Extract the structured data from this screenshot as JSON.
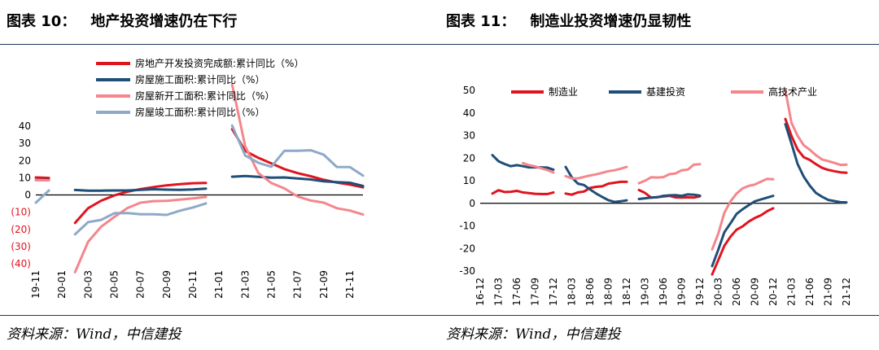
{
  "charts": [
    {
      "title_prefix": "图表 10：",
      "title_text": "地产投资增速仍在下行",
      "source": "资料来源：Wind，中信建投"
    },
    {
      "title_prefix": "图表 11：",
      "title_text": "制造业投资增速仍显韧性",
      "source": "资料来源：Wind，中信建投"
    }
  ],
  "chart_data": [
    {
      "type": "line",
      "ylim": [
        -40,
        40
      ],
      "yticks": [
        40,
        30,
        20,
        10,
        0,
        -10,
        -20,
        -30,
        -40
      ],
      "ytick_labels": [
        "40",
        "30",
        "20",
        "10",
        "0",
        "(10)",
        "(20)",
        "(30)",
        "(40)"
      ],
      "x": [
        "19-11",
        "19-12",
        "20-01",
        "20-02",
        "20-03",
        "20-04",
        "20-05",
        "20-06",
        "20-07",
        "20-08",
        "20-09",
        "20-10",
        "20-11",
        "20-12",
        "21-01",
        "21-02",
        "21-03",
        "21-04",
        "21-05",
        "21-06",
        "21-07",
        "21-08",
        "21-09",
        "21-10",
        "21-11",
        "21-12"
      ],
      "xtick_labels": [
        "19-11",
        "20-01",
        "20-03",
        "20-05",
        "20-07",
        "20-09",
        "20-11",
        "21-01",
        "21-03",
        "21-05",
        "21-07",
        "21-09",
        "21-11"
      ],
      "legend_position": "top",
      "series": [
        {
          "name": "房地产开发投资完成额:累计同比（%）",
          "color": "#e0141e",
          "values": [
            10.2,
            9.9,
            null,
            -16.3,
            -7.7,
            -3.3,
            -0.3,
            1.9,
            3.4,
            4.6,
            5.6,
            6.3,
            6.8,
            7.0,
            null,
            38.3,
            25.6,
            21.6,
            18.3,
            15.0,
            12.7,
            10.9,
            8.8,
            7.2,
            6.0,
            4.4
          ]
        },
        {
          "name": "房屋施工面积:累计同比（%）",
          "color": "#1f4e79",
          "values": [
            8.7,
            8.7,
            null,
            2.9,
            2.5,
            2.5,
            2.6,
            2.6,
            3.0,
            3.3,
            3.1,
            3.0,
            3.2,
            3.7,
            null,
            10.6,
            11.0,
            10.5,
            10.1,
            10.2,
            9.6,
            9.0,
            7.9,
            7.5,
            7.1,
            5.2
          ]
        },
        {
          "name": "房屋新开工面积:累计同比（%）",
          "color": "#f4868c",
          "values": [
            8.6,
            8.5,
            null,
            -44.9,
            -27.2,
            -18.4,
            -12.8,
            -7.6,
            -4.5,
            -3.6,
            -3.4,
            -2.7,
            -2.0,
            -1.2,
            null,
            64.3,
            28.2,
            12.8,
            6.9,
            3.8,
            -0.9,
            -3.2,
            -4.5,
            -7.7,
            -9.1,
            -11.4
          ]
        },
        {
          "name": "房屋竣工面积:累计同比（%）",
          "color": "#8ea9c8",
          "values": [
            -4.5,
            2.6,
            null,
            -22.9,
            -15.8,
            -14.5,
            -10.6,
            -10.5,
            -11.2,
            -11.2,
            -11.6,
            -9.2,
            -7.3,
            -4.9,
            null,
            40.4,
            22.9,
            18.7,
            16.4,
            25.7,
            25.7,
            26.0,
            23.4,
            16.3,
            16.2,
            11.2
          ]
        }
      ]
    },
    {
      "type": "line",
      "ylim": [
        -30,
        50
      ],
      "yticks": [
        50,
        40,
        30,
        20,
        10,
        0,
        -10,
        -20,
        -30
      ],
      "ytick_labels": [
        "50",
        "40",
        "30",
        "20",
        "10",
        "0",
        "-10",
        "-20",
        "-30"
      ],
      "x": [
        "16-12",
        "17-01",
        "17-02",
        "17-03",
        "17-04",
        "17-05",
        "17-06",
        "17-07",
        "17-08",
        "17-09",
        "17-10",
        "17-11",
        "17-12",
        "18-01",
        "18-02",
        "18-03",
        "18-04",
        "18-05",
        "18-06",
        "18-07",
        "18-08",
        "18-09",
        "18-10",
        "18-11",
        "18-12",
        "19-01",
        "19-02",
        "19-03",
        "19-04",
        "19-05",
        "19-06",
        "19-07",
        "19-08",
        "19-09",
        "19-10",
        "19-11",
        "19-12",
        "20-01",
        "20-02",
        "20-03",
        "20-04",
        "20-05",
        "20-06",
        "20-07",
        "20-08",
        "20-09",
        "20-10",
        "20-11",
        "20-12",
        "21-01",
        "21-02",
        "21-03",
        "21-04",
        "21-05",
        "21-06",
        "21-07",
        "21-08",
        "21-09",
        "21-10",
        "21-11",
        "21-12"
      ],
      "xtick_labels": [
        "16-12",
        "17-03",
        "17-06",
        "17-09",
        "17-12",
        "18-03",
        "18-06",
        "18-09",
        "18-12",
        "19-03",
        "19-06",
        "19-09",
        "19-12",
        "20-03",
        "20-06",
        "20-09",
        "20-12",
        "21-03",
        "21-06",
        "21-09",
        "21-12"
      ],
      "legend_position": "top",
      "series": [
        {
          "name": "制造业",
          "color": "#e0141e",
          "values": [
            4.2,
            null,
            4.3,
            5.8,
            5.0,
            5.1,
            5.5,
            4.8,
            4.5,
            4.2,
            4.1,
            4.1,
            4.8,
            null,
            4.3,
            3.8,
            4.8,
            5.2,
            6.8,
            7.3,
            7.5,
            8.7,
            9.1,
            9.5,
            9.5,
            null,
            5.9,
            4.6,
            2.5,
            2.7,
            3.0,
            3.3,
            2.6,
            2.5,
            2.6,
            2.5,
            3.1,
            null,
            -31.5,
            -25.2,
            -18.8,
            -14.8,
            -11.7,
            -10.2,
            -8.1,
            -6.5,
            -5.3,
            -3.5,
            -2.2,
            null,
            37.3,
            29.8,
            23.8,
            20.4,
            19.2,
            17.3,
            15.7,
            14.8,
            14.2,
            13.7,
            13.5
          ]
        },
        {
          "name": "基建投资",
          "color": "#1f4e79",
          "values": [
            15.7,
            null,
            21.3,
            18.6,
            17.4,
            16.4,
            16.9,
            16.4,
            15.9,
            15.9,
            15.9,
            15.8,
            14.9,
            null,
            16.1,
            11.5,
            8.7,
            8.1,
            6.1,
            4.3,
            2.8,
            1.4,
            0.6,
            0.9,
            1.3,
            null,
            1.9,
            2.2,
            2.5,
            2.7,
            3.3,
            3.5,
            3.6,
            3.3,
            3.9,
            3.8,
            3.4,
            null,
            -27.8,
            -20.6,
            -12.8,
            -8.9,
            -4.7,
            -2.6,
            -0.8,
            0.9,
            1.7,
            2.5,
            3.3,
            null,
            35.0,
            26.4,
            17.4,
            11.8,
            7.8,
            4.6,
            2.9,
            1.5,
            1.0,
            0.5,
            0.4
          ]
        },
        {
          "name": "高技术产业",
          "color": "#f4868c",
          "values": [
            null,
            null,
            null,
            null,
            null,
            null,
            null,
            17.8,
            16.9,
            16.3,
            15.5,
            14.7,
            13.6,
            null,
            12.0,
            11.0,
            11.0,
            11.7,
            12.3,
            12.8,
            13.5,
            14.2,
            14.6,
            15.3,
            16.1,
            null,
            8.9,
            10.0,
            11.5,
            11.4,
            11.6,
            12.9,
            13.2,
            14.6,
            14.9,
            17.1,
            17.3,
            null,
            -20.4,
            -13.5,
            -4.2,
            0.8,
            4.3,
            6.6,
            7.7,
            8.3,
            9.6,
            10.8,
            10.6,
            null,
            50.0,
            35.6,
            29.9,
            25.7,
            23.7,
            21.3,
            19.4,
            18.7,
            17.9,
            17.0,
            17.1
          ]
        }
      ]
    }
  ]
}
